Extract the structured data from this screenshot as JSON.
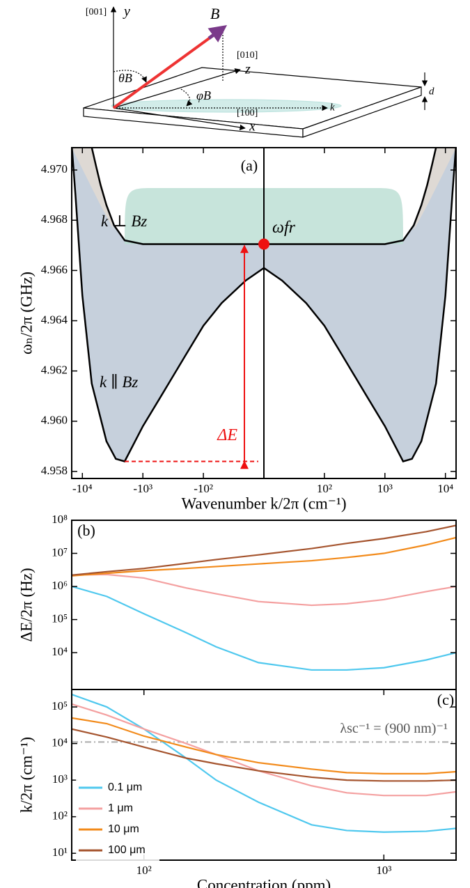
{
  "diagram": {
    "y_miller": "[001]",
    "y_axis": "y",
    "b_field": "B",
    "z_miller": "[010]",
    "z_axis": "z",
    "theta": "θB",
    "phi": "φB",
    "k": "k",
    "d": "d",
    "x_miller": "[100]",
    "x_axis": "x"
  },
  "chart_data": [
    {
      "type": "line",
      "label": "(a)",
      "ylabel": "ωₙ/2π (GHz)",
      "xlabel": "Wavenumber k/2π (cm⁻¹)",
      "xscale": "symlog",
      "linthresh": 10,
      "xlim": [
        -15000,
        15000
      ],
      "ylim": [
        4.95772,
        4.97089
      ],
      "xticks": [
        {
          "value": -10000,
          "label": "-10⁴"
        },
        {
          "value": -1000,
          "label": "-10³"
        },
        {
          "value": -100,
          "label": "-10²"
        },
        {
          "value": 100,
          "label": "10²"
        },
        {
          "value": 1000,
          "label": "10³"
        },
        {
          "value": 10000,
          "label": "10⁴"
        }
      ],
      "yticks": [
        4.958,
        {
          "value": 4.96,
          "label": "4.960"
        },
        4.962,
        4.964,
        4.966,
        4.968,
        {
          "value": 4.97,
          "label": "4.970"
        }
      ],
      "series": [
        {
          "name": "k ⊥ Bz",
          "color": "#000000",
          "x": [
            -7000,
            -6000,
            -5000,
            -4000,
            -3000,
            -2000,
            -1000,
            -300,
            -100,
            -30,
            -10,
            10,
            30,
            100,
            300,
            1000,
            2000,
            3000,
            4000,
            5000,
            6000,
            7000
          ],
          "values": [
            4.9709,
            4.9702,
            4.9694,
            4.9686,
            4.9678,
            4.9672,
            4.96705,
            4.96705,
            4.96705,
            4.96705,
            4.96705,
            4.96705,
            4.96705,
            4.96705,
            4.96705,
            4.96705,
            4.9672,
            4.9678,
            4.9686,
            4.9694,
            4.9702,
            4.9709
          ]
        },
        {
          "name": "k ∥ Bz",
          "color": "#000000",
          "x": [
            -15000,
            -13000,
            -10000,
            -7000,
            -4000,
            -2800,
            -2000,
            -1000,
            -500,
            -200,
            -100,
            -50,
            -20,
            -10,
            10,
            20,
            50,
            100,
            200,
            500,
            1000,
            2000,
            2800,
            4000,
            7000,
            10000,
            13000,
            15000
          ],
          "values": [
            4.971,
            4.969,
            4.965,
            4.9615,
            4.9592,
            4.9585,
            4.9584,
            4.9598,
            4.961,
            4.9626,
            4.9638,
            4.9647,
            4.9656,
            4.9661,
            4.9661,
            4.9656,
            4.9647,
            4.9638,
            4.9626,
            4.961,
            4.9598,
            4.9584,
            4.9585,
            4.9592,
            4.9615,
            4.965,
            4.969,
            4.971
          ]
        }
      ],
      "omega_fr": {
        "label": "ωfr",
        "value": 4.96705,
        "color": "#ee1111"
      },
      "delta_e": {
        "label": "ΔE",
        "values": [
          4.9584,
          4.96705
        ],
        "color": "#ee1111"
      }
    },
    {
      "type": "line",
      "label": "(b)",
      "ylabel": "ΔE/2π (Hz)",
      "xscale": "log",
      "yscale": "log",
      "xlim": [
        50,
        2000
      ],
      "ylim": [
        770,
        100000000
      ],
      "yticks": [
        {
          "value": 10000,
          "label": "10⁴"
        },
        {
          "value": 100000,
          "label": "10⁵"
        },
        {
          "value": 1000000,
          "label": "10⁶"
        },
        {
          "value": 10000000,
          "label": "10⁷"
        },
        {
          "value": 100000000,
          "label": "10⁸"
        }
      ],
      "x": [
        50,
        70,
        100,
        150,
        200,
        300,
        500,
        700,
        1000,
        1500,
        2000
      ],
      "series": [
        {
          "color": "#4fc8ee",
          "values": [
            1000000,
            500000,
            150000,
            40000,
            15000,
            5000,
            3000,
            3000,
            3500,
            6000,
            10000
          ]
        },
        {
          "color": "#f4a0a0",
          "values": [
            2200000,
            2300000,
            1800000,
            900000,
            600000,
            350000,
            270000,
            300000,
            400000,
            700000,
            1000000
          ]
        },
        {
          "color": "#f28a1a",
          "values": [
            2100000,
            2500000,
            3000000,
            3500000,
            4000000,
            4800000,
            6000000,
            7500000,
            10000000,
            18000000,
            30000000
          ]
        },
        {
          "color": "#a5542e",
          "values": [
            2200000,
            2800000,
            3500000,
            5000000,
            6500000,
            9000000,
            14000000,
            20000000,
            28000000,
            45000000,
            70000000
          ]
        }
      ]
    },
    {
      "type": "line",
      "label": "(c)",
      "ylabel": "k/2π (cm⁻¹)",
      "xlabel": "Concentration (ppm)",
      "xscale": "log",
      "yscale": "log",
      "xlim": [
        50,
        2000
      ],
      "ylim": [
        6.5,
        300000
      ],
      "xticks": [
        {
          "value": 100,
          "label": "10²"
        },
        {
          "value": 1000,
          "label": "10³"
        }
      ],
      "yticks": [
        {
          "value": 10,
          "label": "10¹"
        },
        {
          "value": 100,
          "label": "10²"
        },
        {
          "value": 1000,
          "label": "10³"
        },
        {
          "value": 10000,
          "label": "10⁴"
        },
        {
          "value": 100000,
          "label": "10⁵"
        }
      ],
      "hline": {
        "value": 11000,
        "label": "λsc⁻¹ = (900 nm)⁻¹",
        "color": "#aaaaaa"
      },
      "legend": "lower left",
      "x": [
        50,
        70,
        100,
        150,
        200,
        300,
        500,
        700,
        1000,
        1500,
        2000
      ],
      "series": [
        {
          "name": "0.1 μm",
          "color": "#4fc8ee",
          "values": [
            220000,
            100000,
            25000,
            4000,
            1000,
            250,
            60,
            42,
            38,
            40,
            48
          ]
        },
        {
          "name": "1 μm",
          "color": "#f4a0a0",
          "values": [
            120000,
            60000,
            25000,
            10000,
            5000,
            1800,
            700,
            450,
            380,
            380,
            480
          ]
        },
        {
          "name": "10 μm",
          "color": "#f28a1a",
          "values": [
            50000,
            35000,
            16000,
            8000,
            5000,
            3000,
            2000,
            1600,
            1500,
            1500,
            1700
          ]
        },
        {
          "name": "100 μm",
          "color": "#a5542e",
          "values": [
            25000,
            15000,
            8000,
            4000,
            2800,
            1800,
            1200,
            1000,
            950,
            950,
            1000
          ]
        }
      ]
    }
  ]
}
